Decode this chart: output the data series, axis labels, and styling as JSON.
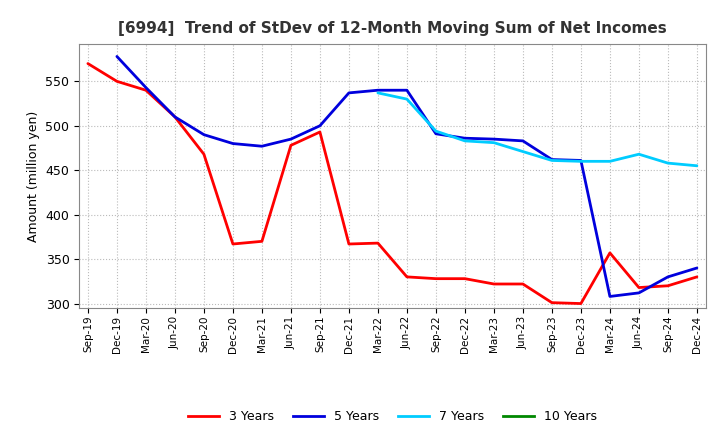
{
  "title": "[6994]  Trend of StDev of 12-Month Moving Sum of Net Incomes",
  "ylabel": "Amount (million yen)",
  "background_color": "#ffffff",
  "grid_color": "#bbbbbb",
  "ylim": [
    295,
    592
  ],
  "x_labels": [
    "Sep-19",
    "Dec-19",
    "Mar-20",
    "Jun-20",
    "Sep-20",
    "Dec-20",
    "Mar-21",
    "Jun-21",
    "Sep-21",
    "Dec-21",
    "Mar-22",
    "Jun-22",
    "Sep-22",
    "Dec-22",
    "Mar-23",
    "Jun-23",
    "Sep-23",
    "Dec-23",
    "Mar-24",
    "Jun-24",
    "Sep-24",
    "Dec-24"
  ],
  "series": {
    "3 Years": {
      "color": "#ff0000",
      "linewidth": 2.0,
      "values": [
        570,
        550,
        540,
        510,
        468,
        367,
        370,
        478,
        493,
        367,
        368,
        330,
        328,
        328,
        322,
        322,
        301,
        300,
        357,
        318,
        320,
        330
      ]
    },
    "5 Years": {
      "color": "#0000dd",
      "linewidth": 2.0,
      "values": [
        null,
        578,
        543,
        510,
        490,
        480,
        477,
        485,
        500,
        537,
        540,
        540,
        491,
        486,
        485,
        483,
        462,
        461,
        308,
        312,
        330,
        340
      ]
    },
    "7 Years": {
      "color": "#00ccff",
      "linewidth": 2.0,
      "values": [
        null,
        null,
        null,
        null,
        null,
        null,
        null,
        null,
        null,
        null,
        537,
        530,
        494,
        483,
        481,
        471,
        461,
        460,
        460,
        468,
        458,
        455
      ]
    },
    "10 Years": {
      "color": "#008800",
      "linewidth": 2.0,
      "values": [
        null,
        null,
        null,
        null,
        null,
        null,
        null,
        null,
        null,
        null,
        null,
        null,
        null,
        null,
        null,
        null,
        null,
        null,
        null,
        null,
        null,
        null
      ]
    }
  },
  "legend_items": [
    "3 Years",
    "5 Years",
    "7 Years",
    "10 Years"
  ],
  "legend_colors": [
    "#ff0000",
    "#0000dd",
    "#00ccff",
    "#008800"
  ]
}
